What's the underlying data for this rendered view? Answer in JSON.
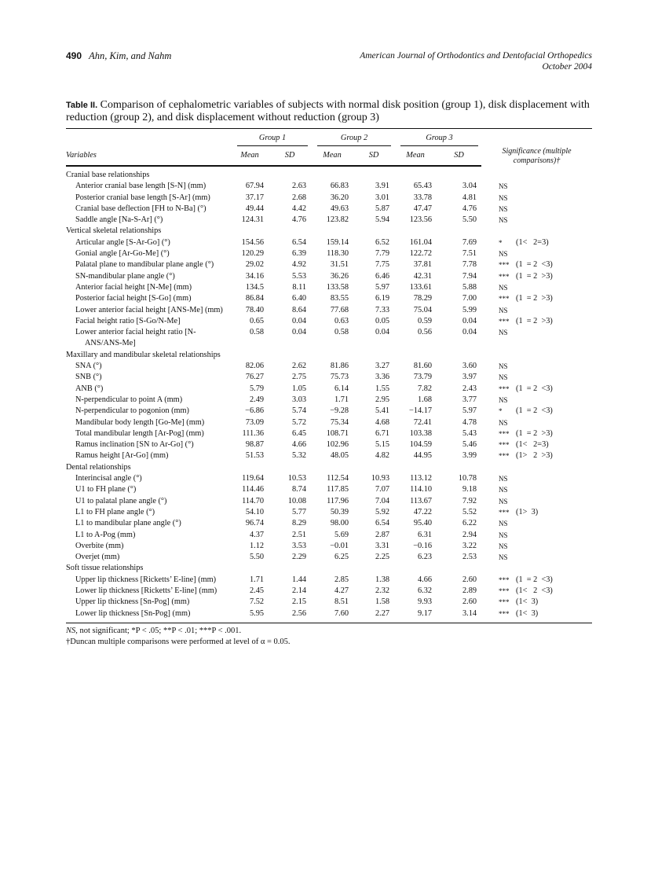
{
  "header": {
    "page_number": "490",
    "authors": "Ahn, Kim, and Nahm",
    "journal": "American Journal of Orthodontics and Dentofacial Orthopedics",
    "date": "October 2004"
  },
  "caption": {
    "label": "Table II.",
    "text": "Comparison of cephalometric variables of subjects with normal disk position (group 1), disk displacement with reduction (group 2), and disk displacement without reduction (group 3)"
  },
  "table": {
    "col_variables": "Variables",
    "groups": [
      "Group 1",
      "Group 2",
      "Group 3"
    ],
    "mean": "Mean",
    "sd": "SD",
    "col_significance": "Significance (multiple comparisons)†",
    "rows": [
      {
        "section": "Cranial base relationships"
      },
      {
        "label": "Anterior cranial base length [S-N] (mm)",
        "v": [
          "67.94",
          "2.63",
          "66.83",
          "3.91",
          "65.43",
          "3.04"
        ],
        "sig": "NS",
        "cmp": ""
      },
      {
        "label": "Posterior cranial base length [S-Ar] (mm)",
        "v": [
          "37.17",
          "2.68",
          "36.20",
          "3.01",
          "33.78",
          "4.81"
        ],
        "sig": "NS",
        "cmp": ""
      },
      {
        "label": "Cranial base deflection [FH to N-Ba] (°)",
        "v": [
          "49.44",
          "4.42",
          "49.63",
          "5.87",
          "47.47",
          "4.76"
        ],
        "sig": "NS",
        "cmp": ""
      },
      {
        "label": "Saddle angle [Na-S-Ar] (°)",
        "v": [
          "124.31",
          "4.76",
          "123.82",
          "5.94",
          "123.56",
          "5.50"
        ],
        "sig": "NS",
        "cmp": ""
      },
      {
        "section": "Vertical skeletal relationships"
      },
      {
        "label": "Articular angle [S-Ar-Go] (°)",
        "v": [
          "154.56",
          "6.54",
          "159.14",
          "6.52",
          "161.04",
          "7.69"
        ],
        "sig": "*",
        "cmp": "(1<   2=3)"
      },
      {
        "label": "Gonial angle [Ar-Go-Me] (°)",
        "v": [
          "120.29",
          "6.39",
          "118.30",
          "7.79",
          "122.72",
          "7.51"
        ],
        "sig": "NS",
        "cmp": ""
      },
      {
        "label": "Palatal plane to mandibular plane angle (°)",
        "v": [
          "29.02",
          "4.92",
          "31.51",
          "7.75",
          "37.81",
          "7.78"
        ],
        "sig": "***",
        "cmp": "(1  = 2  <3)"
      },
      {
        "label": "SN-mandibular plane angle (°)",
        "v": [
          "34.16",
          "5.53",
          "36.26",
          "6.46",
          "42.31",
          "7.94"
        ],
        "sig": "***",
        "cmp": "(1  = 2  >3)"
      },
      {
        "label": "Anterior facial height [N-Me] (mm)",
        "v": [
          "134.5",
          "8.11",
          "133.58",
          "5.97",
          "133.61",
          "5.88"
        ],
        "sig": "NS",
        "cmp": ""
      },
      {
        "label": "Posterior facial height [S-Go] (mm)",
        "v": [
          "86.84",
          "6.40",
          "83.55",
          "6.19",
          "78.29",
          "7.00"
        ],
        "sig": "***",
        "cmp": "(1  = 2  >3)"
      },
      {
        "label": "Lower anterior facial height [ANS-Me] (mm)",
        "v": [
          "78.40",
          "8.64",
          "77.68",
          "7.33",
          "75.04",
          "5.99"
        ],
        "sig": "NS",
        "cmp": ""
      },
      {
        "label": "Facial height ratio [S-Go/N-Me]",
        "v": [
          "0.65",
          "0.04",
          "0.63",
          "0.05",
          "0.59",
          "0.04"
        ],
        "sig": "***",
        "cmp": "(1  = 2  >3)"
      },
      {
        "label": "Lower anterior facial height ratio [N-ANS/ANS-Me]",
        "v": [
          "0.58",
          "0.04",
          "0.58",
          "0.04",
          "0.56",
          "0.04"
        ],
        "sig": "NS",
        "cmp": ""
      },
      {
        "section": "Maxillary and mandibular skeletal relationships"
      },
      {
        "label": "SNA (°)",
        "v": [
          "82.06",
          "2.62",
          "81.86",
          "3.27",
          "81.60",
          "3.60"
        ],
        "sig": "NS",
        "cmp": ""
      },
      {
        "label": "SNB (°)",
        "v": [
          "76.27",
          "2.75",
          "75.73",
          "3.36",
          "73.79",
          "3.97"
        ],
        "sig": "NS",
        "cmp": ""
      },
      {
        "label": "ANB (°)",
        "v": [
          "5.79",
          "1.05",
          "6.14",
          "1.55",
          "7.82",
          "2.43"
        ],
        "sig": "***",
        "cmp": "(1  = 2  <3)"
      },
      {
        "label": "N-perpendicular to point A (mm)",
        "v": [
          "2.49",
          "3.03",
          "1.71",
          "2.95",
          "1.68",
          "3.77"
        ],
        "sig": "NS",
        "cmp": ""
      },
      {
        "label": "N-perpendicular to pogonion (mm)",
        "v": [
          "−6.86",
          "5.74",
          "−9.28",
          "5.41",
          "−14.17",
          "5.97"
        ],
        "sig": "*",
        "cmp": "(1  = 2  <3)"
      },
      {
        "label": "Mandibular body length [Go-Me] (mm)",
        "v": [
          "73.09",
          "5.72",
          "75.34",
          "4.68",
          "72.41",
          "4.78"
        ],
        "sig": "NS",
        "cmp": ""
      },
      {
        "label": "Total mandibular length [Ar-Pog] (mm)",
        "v": [
          "111.36",
          "6.45",
          "108.71",
          "6.71",
          "103.38",
          "5.43"
        ],
        "sig": "***",
        "cmp": "(1  = 2  >3)"
      },
      {
        "label": "Ramus inclination [SN to Ar-Go] (°)",
        "v": [
          "98.87",
          "4.66",
          "102.96",
          "5.15",
          "104.59",
          "5.46"
        ],
        "sig": "***",
        "cmp": "(1<   2=3)"
      },
      {
        "label": "Ramus height [Ar-Go] (mm)",
        "v": [
          "51.53",
          "5.32",
          "48.05",
          "4.82",
          "44.95",
          "3.99"
        ],
        "sig": "***",
        "cmp": "(1>   2  >3)"
      },
      {
        "section": "Dental relationships"
      },
      {
        "label": "Interincisal angle (°)",
        "v": [
          "119.64",
          "10.53",
          "112.54",
          "10.93",
          "113.12",
          "10.78"
        ],
        "sig": "NS",
        "cmp": ""
      },
      {
        "label": "U1 to FH plane (°)",
        "v": [
          "114.46",
          "8.74",
          "117.85",
          "7.07",
          "114.10",
          "9.18"
        ],
        "sig": "NS",
        "cmp": ""
      },
      {
        "label": "U1 to palatal plane angle (°)",
        "v": [
          "114.70",
          "10.08",
          "117.96",
          "7.04",
          "113.67",
          "7.92"
        ],
        "sig": "NS",
        "cmp": ""
      },
      {
        "label": "L1 to FH plane angle (°)",
        "v": [
          "54.10",
          "5.77",
          "50.39",
          "5.92",
          "47.22",
          "5.52"
        ],
        "sig": "***",
        "cmp": "(1>  3)"
      },
      {
        "label": "L1 to mandibular plane angle (°)",
        "v": [
          "96.74",
          "8.29",
          "98.00",
          "6.54",
          "95.40",
          "6.22"
        ],
        "sig": "NS",
        "cmp": ""
      },
      {
        "label": "L1 to A-Pog (mm)",
        "v": [
          "4.37",
          "2.51",
          "5.69",
          "2.87",
          "6.31",
          "2.94"
        ],
        "sig": "NS",
        "cmp": ""
      },
      {
        "label": "Overbite (mm)",
        "v": [
          "1.12",
          "3.53",
          "−0.01",
          "3.31",
          "−0.16",
          "3.22"
        ],
        "sig": "NS",
        "cmp": ""
      },
      {
        "label": "Overjet (mm)",
        "v": [
          "5.50",
          "2.29",
          "6.25",
          "2.25",
          "6.23",
          "2.53"
        ],
        "sig": "NS",
        "cmp": ""
      },
      {
        "section": "Soft tissue relationships"
      },
      {
        "label": "Upper lip thickness [Ricketts’ E-line] (mm)",
        "v": [
          "1.71",
          "1.44",
          "2.85",
          "1.38",
          "4.66",
          "2.60"
        ],
        "sig": "***",
        "cmp": "(1  = 2  <3)"
      },
      {
        "label": "Lower lip thickness [Ricketts’ E-line] (mm)",
        "v": [
          "2.45",
          "2.14",
          "4.27",
          "2.32",
          "6.32",
          "2.89"
        ],
        "sig": "***",
        "cmp": "(1<   2  <3)"
      },
      {
        "label": "Upper lip thickness [Sn-Pog] (mm)",
        "v": [
          "7.52",
          "2.15",
          "8.51",
          "1.58",
          "9.93",
          "2.60"
        ],
        "sig": "***",
        "cmp": "(1<  3)"
      },
      {
        "label": "Lower lip thickness [Sn-Pog] (mm)",
        "v": [
          "5.95",
          "2.56",
          "7.60",
          "2.27",
          "9.17",
          "3.14"
        ],
        "sig": "***",
        "cmp": "(1<  3)"
      }
    ]
  },
  "footnotes": {
    "ns_abbr": "NS,",
    "ns_text": " not significant; *P < .05; **P < .01; ***P < .001.",
    "duncan": "†Duncan multiple comparisons were performed at level of α = 0.05."
  }
}
